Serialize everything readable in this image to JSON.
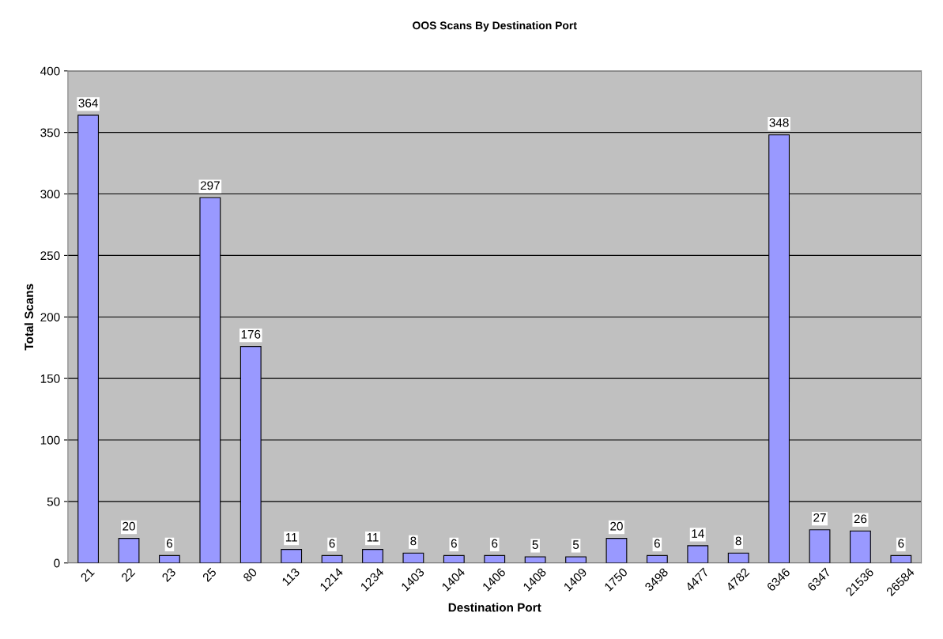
{
  "chart_data": {
    "type": "bar",
    "title": "OOS Scans By Destination Port",
    "xlabel": "Destination Port",
    "ylabel": "Total Scans",
    "categories": [
      "21",
      "22",
      "23",
      "25",
      "80",
      "113",
      "1214",
      "1234",
      "1403",
      "1404",
      "1406",
      "1408",
      "1409",
      "1750",
      "3498",
      "4477",
      "4782",
      "6346",
      "6347",
      "21536",
      "26584"
    ],
    "values": [
      364,
      20,
      6,
      297,
      176,
      11,
      6,
      11,
      8,
      6,
      6,
      5,
      5,
      20,
      6,
      14,
      8,
      348,
      27,
      26,
      6
    ],
    "color": "#9999ff",
    "ylim": [
      0,
      400
    ],
    "yticks": [
      0,
      50,
      100,
      150,
      200,
      250,
      300,
      350,
      400
    ],
    "grid": "y",
    "data_labels": true,
    "legend": false
  }
}
